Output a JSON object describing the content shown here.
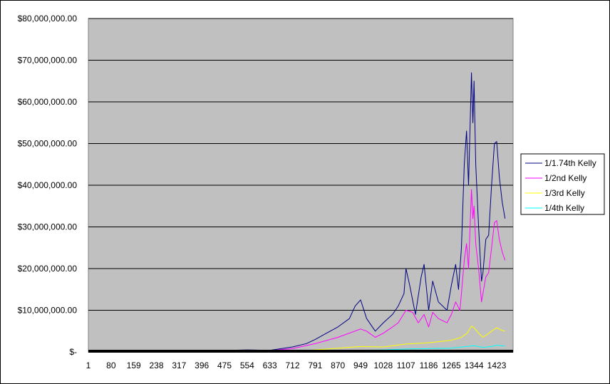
{
  "chart_data": {
    "type": "line",
    "title": "",
    "xlabel": "",
    "ylabel": "",
    "ylim": [
      0,
      80000000
    ],
    "xlim": [
      1,
      1480
    ],
    "x_ticks": [
      1,
      80,
      159,
      238,
      317,
      396,
      475,
      554,
      633,
      712,
      791,
      870,
      949,
      1028,
      1107,
      1186,
      1265,
      1344,
      1423
    ],
    "y_ticks": [
      {
        "value": 0,
        "label": "$-"
      },
      {
        "value": 10000000,
        "label": "$10,000,000.00"
      },
      {
        "value": 20000000,
        "label": "$20,000,000.00"
      },
      {
        "value": 30000000,
        "label": "$30,000,000.00"
      },
      {
        "value": 40000000,
        "label": "$40,000,000.00"
      },
      {
        "value": 50000000,
        "label": "$50,000,000.00"
      },
      {
        "value": 60000000,
        "label": "$60,000,000.00"
      },
      {
        "value": 70000000,
        "label": "$70,000,000.00"
      },
      {
        "value": 80000000,
        "label": "$80,000,000.00"
      }
    ],
    "grid": true,
    "plot_background": "#c0c0c0",
    "legend_position": "right",
    "series": [
      {
        "name": "1/1.74th Kelly",
        "color": "#000080",
        "points": [
          [
            1,
            0
          ],
          [
            238,
            150000
          ],
          [
            396,
            200000
          ],
          [
            554,
            500000
          ],
          [
            633,
            400000
          ],
          [
            712,
            1200000
          ],
          [
            760,
            2000000
          ],
          [
            791,
            3000000
          ],
          [
            830,
            4500000
          ],
          [
            870,
            6000000
          ],
          [
            910,
            8000000
          ],
          [
            930,
            11000000
          ],
          [
            949,
            12500000
          ],
          [
            970,
            8000000
          ],
          [
            1000,
            5000000
          ],
          [
            1028,
            7000000
          ],
          [
            1060,
            9000000
          ],
          [
            1080,
            11000000
          ],
          [
            1100,
            14000000
          ],
          [
            1107,
            20000000
          ],
          [
            1120,
            16000000
          ],
          [
            1140,
            9000000
          ],
          [
            1160,
            18000000
          ],
          [
            1170,
            21000000
          ],
          [
            1186,
            10000000
          ],
          [
            1200,
            17000000
          ],
          [
            1220,
            12000000
          ],
          [
            1250,
            10000000
          ],
          [
            1265,
            16000000
          ],
          [
            1280,
            21000000
          ],
          [
            1290,
            15000000
          ],
          [
            1300,
            25000000
          ],
          [
            1310,
            45000000
          ],
          [
            1318,
            53000000
          ],
          [
            1325,
            40000000
          ],
          [
            1335,
            67000000
          ],
          [
            1340,
            55000000
          ],
          [
            1344,
            65000000
          ],
          [
            1350,
            45000000
          ],
          [
            1360,
            30000000
          ],
          [
            1370,
            17000000
          ],
          [
            1375,
            19000000
          ],
          [
            1385,
            27000000
          ],
          [
            1395,
            28000000
          ],
          [
            1405,
            40000000
          ],
          [
            1415,
            50000000
          ],
          [
            1423,
            50500000
          ],
          [
            1432,
            42000000
          ],
          [
            1442,
            36000000
          ],
          [
            1452,
            32000000
          ]
        ]
      },
      {
        "name": "1/2nd Kelly",
        "color": "#ff00ff",
        "points": [
          [
            1,
            0
          ],
          [
            238,
            100000
          ],
          [
            396,
            150000
          ],
          [
            554,
            300000
          ],
          [
            633,
            300000
          ],
          [
            712,
            800000
          ],
          [
            791,
            2000000
          ],
          [
            870,
            3500000
          ],
          [
            949,
            5500000
          ],
          [
            970,
            5000000
          ],
          [
            1000,
            3500000
          ],
          [
            1028,
            4500000
          ],
          [
            1060,
            6000000
          ],
          [
            1080,
            7000000
          ],
          [
            1107,
            10000000
          ],
          [
            1130,
            9500000
          ],
          [
            1150,
            7000000
          ],
          [
            1170,
            9000000
          ],
          [
            1186,
            6000000
          ],
          [
            1200,
            9500000
          ],
          [
            1220,
            8000000
          ],
          [
            1250,
            7000000
          ],
          [
            1265,
            9000000
          ],
          [
            1280,
            12000000
          ],
          [
            1295,
            10000000
          ],
          [
            1300,
            14000000
          ],
          [
            1310,
            22000000
          ],
          [
            1318,
            26000000
          ],
          [
            1325,
            20000000
          ],
          [
            1335,
            39000000
          ],
          [
            1340,
            32000000
          ],
          [
            1344,
            35000000
          ],
          [
            1350,
            26000000
          ],
          [
            1360,
            20000000
          ],
          [
            1370,
            12000000
          ],
          [
            1375,
            14000000
          ],
          [
            1385,
            18000000
          ],
          [
            1395,
            19000000
          ],
          [
            1405,
            25000000
          ],
          [
            1415,
            31000000
          ],
          [
            1423,
            31500000
          ],
          [
            1432,
            27000000
          ],
          [
            1442,
            24000000
          ],
          [
            1452,
            22000000
          ]
        ]
      },
      {
        "name": "1/3rd Kelly",
        "color": "#ffff00",
        "points": [
          [
            1,
            0
          ],
          [
            396,
            30000
          ],
          [
            554,
            100000
          ],
          [
            712,
            200000
          ],
          [
            791,
            500000
          ],
          [
            870,
            900000
          ],
          [
            949,
            1300000
          ],
          [
            1028,
            1200000
          ],
          [
            1107,
            1900000
          ],
          [
            1186,
            2200000
          ],
          [
            1265,
            2800000
          ],
          [
            1300,
            3500000
          ],
          [
            1320,
            4500000
          ],
          [
            1335,
            6200000
          ],
          [
            1344,
            5800000
          ],
          [
            1360,
            4500000
          ],
          [
            1375,
            3500000
          ],
          [
            1390,
            4200000
          ],
          [
            1405,
            5000000
          ],
          [
            1423,
            5800000
          ],
          [
            1440,
            5200000
          ],
          [
            1452,
            5000000
          ]
        ]
      },
      {
        "name": "1/4th Kelly",
        "color": "#00ffff",
        "points": [
          [
            1,
            0
          ],
          [
            554,
            50000
          ],
          [
            712,
            100000
          ],
          [
            870,
            300000
          ],
          [
            1028,
            500000
          ],
          [
            1107,
            700000
          ],
          [
            1186,
            800000
          ],
          [
            1265,
            900000
          ],
          [
            1344,
            1500000
          ],
          [
            1375,
            1100000
          ],
          [
            1405,
            1300000
          ],
          [
            1423,
            1600000
          ],
          [
            1452,
            1400000
          ]
        ]
      }
    ]
  }
}
